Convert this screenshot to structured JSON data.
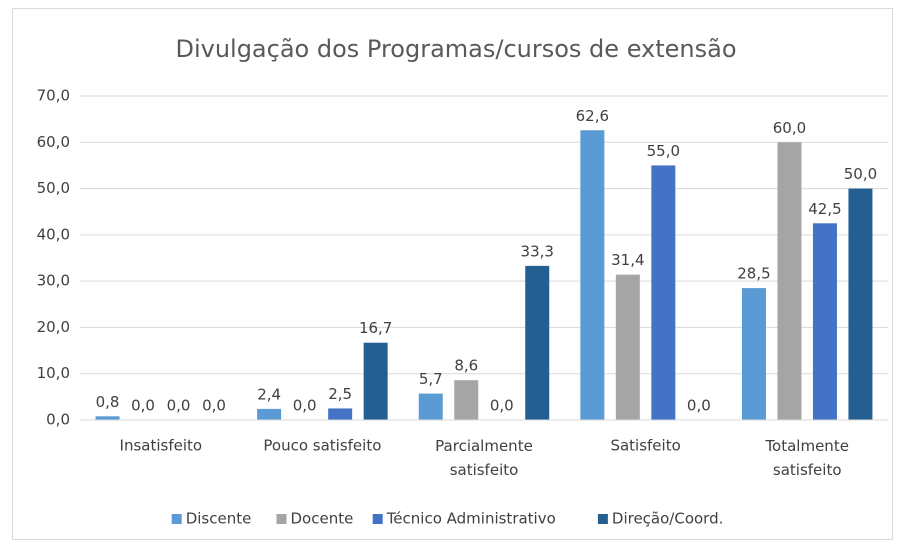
{
  "chart_data": {
    "type": "bar",
    "title": "Divulgação dos Programas/cursos de extensão",
    "categories": [
      "Insatisfeito",
      "Pouco satisfeito",
      "Parcialmente satisfeito",
      "Satisfeito",
      "Totalmente satisfeito"
    ],
    "series": [
      {
        "name": "Discente",
        "color": "#5b9bd5",
        "values": [
          0.8,
          2.4,
          5.7,
          62.6,
          28.5
        ],
        "value_labels": [
          "0,8",
          "2,4",
          "5,7",
          "62,6",
          "28,5"
        ]
      },
      {
        "name": "Docente",
        "color": "#a5a5a5",
        "values": [
          0.0,
          0.0,
          8.6,
          31.4,
          60.0
        ],
        "value_labels": [
          "0,0",
          "0,0",
          "8,6",
          "31,4",
          "60,0"
        ]
      },
      {
        "name": "Técnico Administrativo",
        "color": "#4472c4",
        "values": [
          0.0,
          2.5,
          0.0,
          55.0,
          42.5
        ],
        "value_labels": [
          "0,0",
          "2,5",
          "0,0",
          "55,0",
          "42,5"
        ]
      },
      {
        "name": "Direção/Coord.",
        "color": "#255e91",
        "values": [
          0.0,
          16.7,
          33.3,
          0.0,
          50.0
        ],
        "value_labels": [
          "0,0",
          "16,7",
          "33,3",
          "0,0",
          "50,0"
        ]
      }
    ],
    "ylim": [
      0,
      70
    ],
    "yticks": [
      {
        "value": 0,
        "label": "0,0"
      },
      {
        "value": 10,
        "label": "10,0"
      },
      {
        "value": 20,
        "label": "20,0"
      },
      {
        "value": 30,
        "label": "30,0"
      },
      {
        "value": 40,
        "label": "40,0"
      },
      {
        "value": 50,
        "label": "50,0"
      },
      {
        "value": 60,
        "label": "60,0"
      },
      {
        "value": 70,
        "label": "70,0"
      }
    ],
    "grid": true,
    "legend": "bottom"
  }
}
